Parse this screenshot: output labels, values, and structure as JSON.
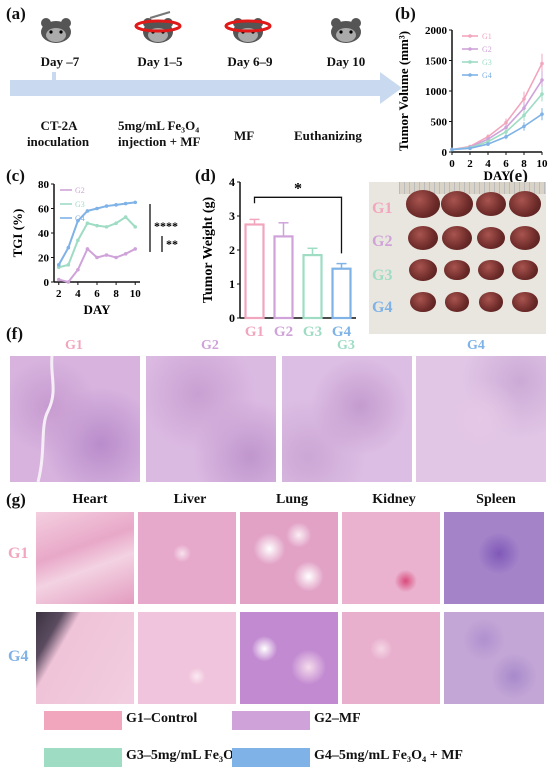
{
  "panels": {
    "a": "(a)",
    "b": "(b)",
    "c": "(c)",
    "d": "(d)",
    "e": "(e)",
    "f": "(f)",
    "g": "(g)"
  },
  "timeline": {
    "days": [
      "Day –7",
      "Day 1–5",
      "Day 6–9",
      "Day 10"
    ],
    "desc": {
      "d1_l1": "CT-2A",
      "d1_l2": "inoculation",
      "d2_l1": "5mg/mL Fe₃O₄",
      "d2_l2": "injection +  MF",
      "d3": "MF",
      "d4": "Euthanizing"
    }
  },
  "colors": {
    "G1": "#f2a6bd",
    "G2": "#cfa3d9",
    "G3": "#9fdcc4",
    "G4": "#7fb2e6",
    "arrow": "#c9d9ef"
  },
  "chart_data": [
    {
      "type": "line",
      "title": "",
      "xlabel": "DAY",
      "ylabel": "Tumor Volume (mm³)",
      "x": [
        0,
        2,
        4,
        6,
        8,
        10
      ],
      "xticks": [
        "0",
        "2",
        "4",
        "6",
        "8",
        "10"
      ],
      "yticks": [
        "0",
        "500",
        "1000",
        "1500",
        "2000"
      ],
      "xlim": [
        0,
        10
      ],
      "ylim": [
        0,
        2000
      ],
      "legend_position": "top-left",
      "series": [
        {
          "name": "G1",
          "values": [
            40,
            90,
            250,
            480,
            870,
            1450
          ],
          "err": [
            5,
            15,
            40,
            70,
            120,
            160
          ]
        },
        {
          "name": "G2",
          "values": [
            40,
            80,
            210,
            400,
            720,
            1180
          ],
          "err": [
            5,
            12,
            35,
            60,
            100,
            140
          ]
        },
        {
          "name": "G3",
          "values": [
            40,
            70,
            170,
            330,
            600,
            950
          ],
          "err": [
            5,
            10,
            30,
            50,
            90,
            120
          ]
        },
        {
          "name": "G4",
          "values": [
            40,
            60,
            130,
            250,
            420,
            620
          ],
          "err": [
            5,
            10,
            25,
            40,
            70,
            100
          ]
        }
      ]
    },
    {
      "type": "line",
      "title": "",
      "xlabel": "DAY",
      "ylabel": "TGI (%)",
      "x": [
        2,
        3,
        4,
        5,
        6,
        7,
        8,
        9,
        10
      ],
      "xticks": [
        "2",
        "4",
        "6",
        "8",
        "10"
      ],
      "yticks": [
        "0",
        "20",
        "40",
        "60",
        "80"
      ],
      "xlim": [
        1.5,
        10.5
      ],
      "ylim": [
        0,
        80
      ],
      "legend_position": "top-left",
      "significance": [
        "****",
        "**"
      ],
      "series": [
        {
          "name": "G2",
          "values": [
            2,
            0,
            10,
            27,
            20,
            22,
            20,
            23,
            27
          ]
        },
        {
          "name": "G3",
          "values": [
            12,
            14,
            34,
            48,
            46,
            45,
            48,
            53,
            45
          ]
        },
        {
          "name": "G4",
          "values": [
            14,
            28,
            50,
            58,
            60,
            62,
            63,
            64,
            65
          ]
        }
      ]
    },
    {
      "type": "bar",
      "title": "",
      "xlabel": "",
      "ylabel": "Tumor Weight (g)",
      "categories": [
        "G1",
        "G2",
        "G3",
        "G4"
      ],
      "values": [
        2.75,
        2.4,
        1.85,
        1.45
      ],
      "err": [
        0.15,
        0.4,
        0.2,
        0.15
      ],
      "yticks": [
        "0",
        "1",
        "2",
        "3",
        "4"
      ],
      "ylim": [
        0,
        4
      ],
      "significance": "*"
    }
  ],
  "photo_rows": [
    "G1",
    "G2",
    "G3",
    "G4"
  ],
  "histo_f_labels": [
    "G1",
    "G2",
    "G3",
    "G4"
  ],
  "organs": [
    "Heart",
    "Liver",
    "Lung",
    "Kidney",
    "Spleen"
  ],
  "histo_g_rows": [
    "G1",
    "G4"
  ],
  "legend": [
    {
      "key": "G1",
      "label": "G1–Control"
    },
    {
      "key": "G2",
      "label": "G2–MF"
    },
    {
      "key": "G3",
      "label": "G3–5mg/mL Fe₃O₄"
    },
    {
      "key": "G4",
      "label": "G4–5mg/mL Fe₃O₄ +  MF"
    }
  ]
}
